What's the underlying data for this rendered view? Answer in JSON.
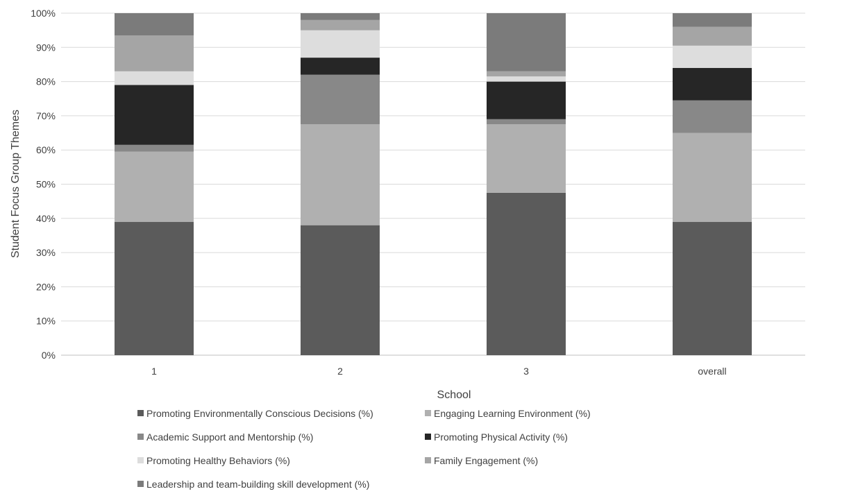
{
  "chart_data": {
    "type": "bar",
    "stacked": true,
    "title": "",
    "xlabel": "School",
    "ylabel": "Student Focus Group Themes",
    "ylim": [
      0,
      100
    ],
    "y_tick_format": "percent",
    "y_ticks": [
      "0%",
      "10%",
      "20%",
      "30%",
      "40%",
      "50%",
      "60%",
      "70%",
      "80%",
      "90%",
      "100%"
    ],
    "grid": true,
    "legend_position": "bottom",
    "categories": [
      "1",
      "2",
      "3",
      "overall"
    ],
    "series": [
      {
        "name": "Promoting Environmentally Conscious Decisions (%)",
        "color": "#5b5b5b",
        "values": [
          39,
          38,
          47.5,
          39
        ]
      },
      {
        "name": "Engaging Learning Environment (%)",
        "color": "#b0b0b0",
        "values": [
          20.5,
          29.5,
          20,
          26
        ]
      },
      {
        "name": "Academic Support and Mentorship (%)",
        "color": "#888888",
        "values": [
          2,
          14.5,
          1.5,
          9.5
        ]
      },
      {
        "name": "Promoting Physical Activity (%)",
        "color": "#262626",
        "values": [
          17.5,
          5,
          11,
          9.5
        ]
      },
      {
        "name": "Promoting Healthy Behaviors (%)",
        "color": "#dddddd",
        "values": [
          4,
          8,
          1.5,
          6.5
        ]
      },
      {
        "name": "Family Engagement (%)",
        "color": "#a5a5a5",
        "values": [
          10.5,
          3,
          1.5,
          5.5
        ]
      },
      {
        "name": "Leadership and team-building skill development (%)",
        "color": "#7b7b7b",
        "values": [
          6.5,
          2,
          17,
          4
        ]
      }
    ]
  }
}
